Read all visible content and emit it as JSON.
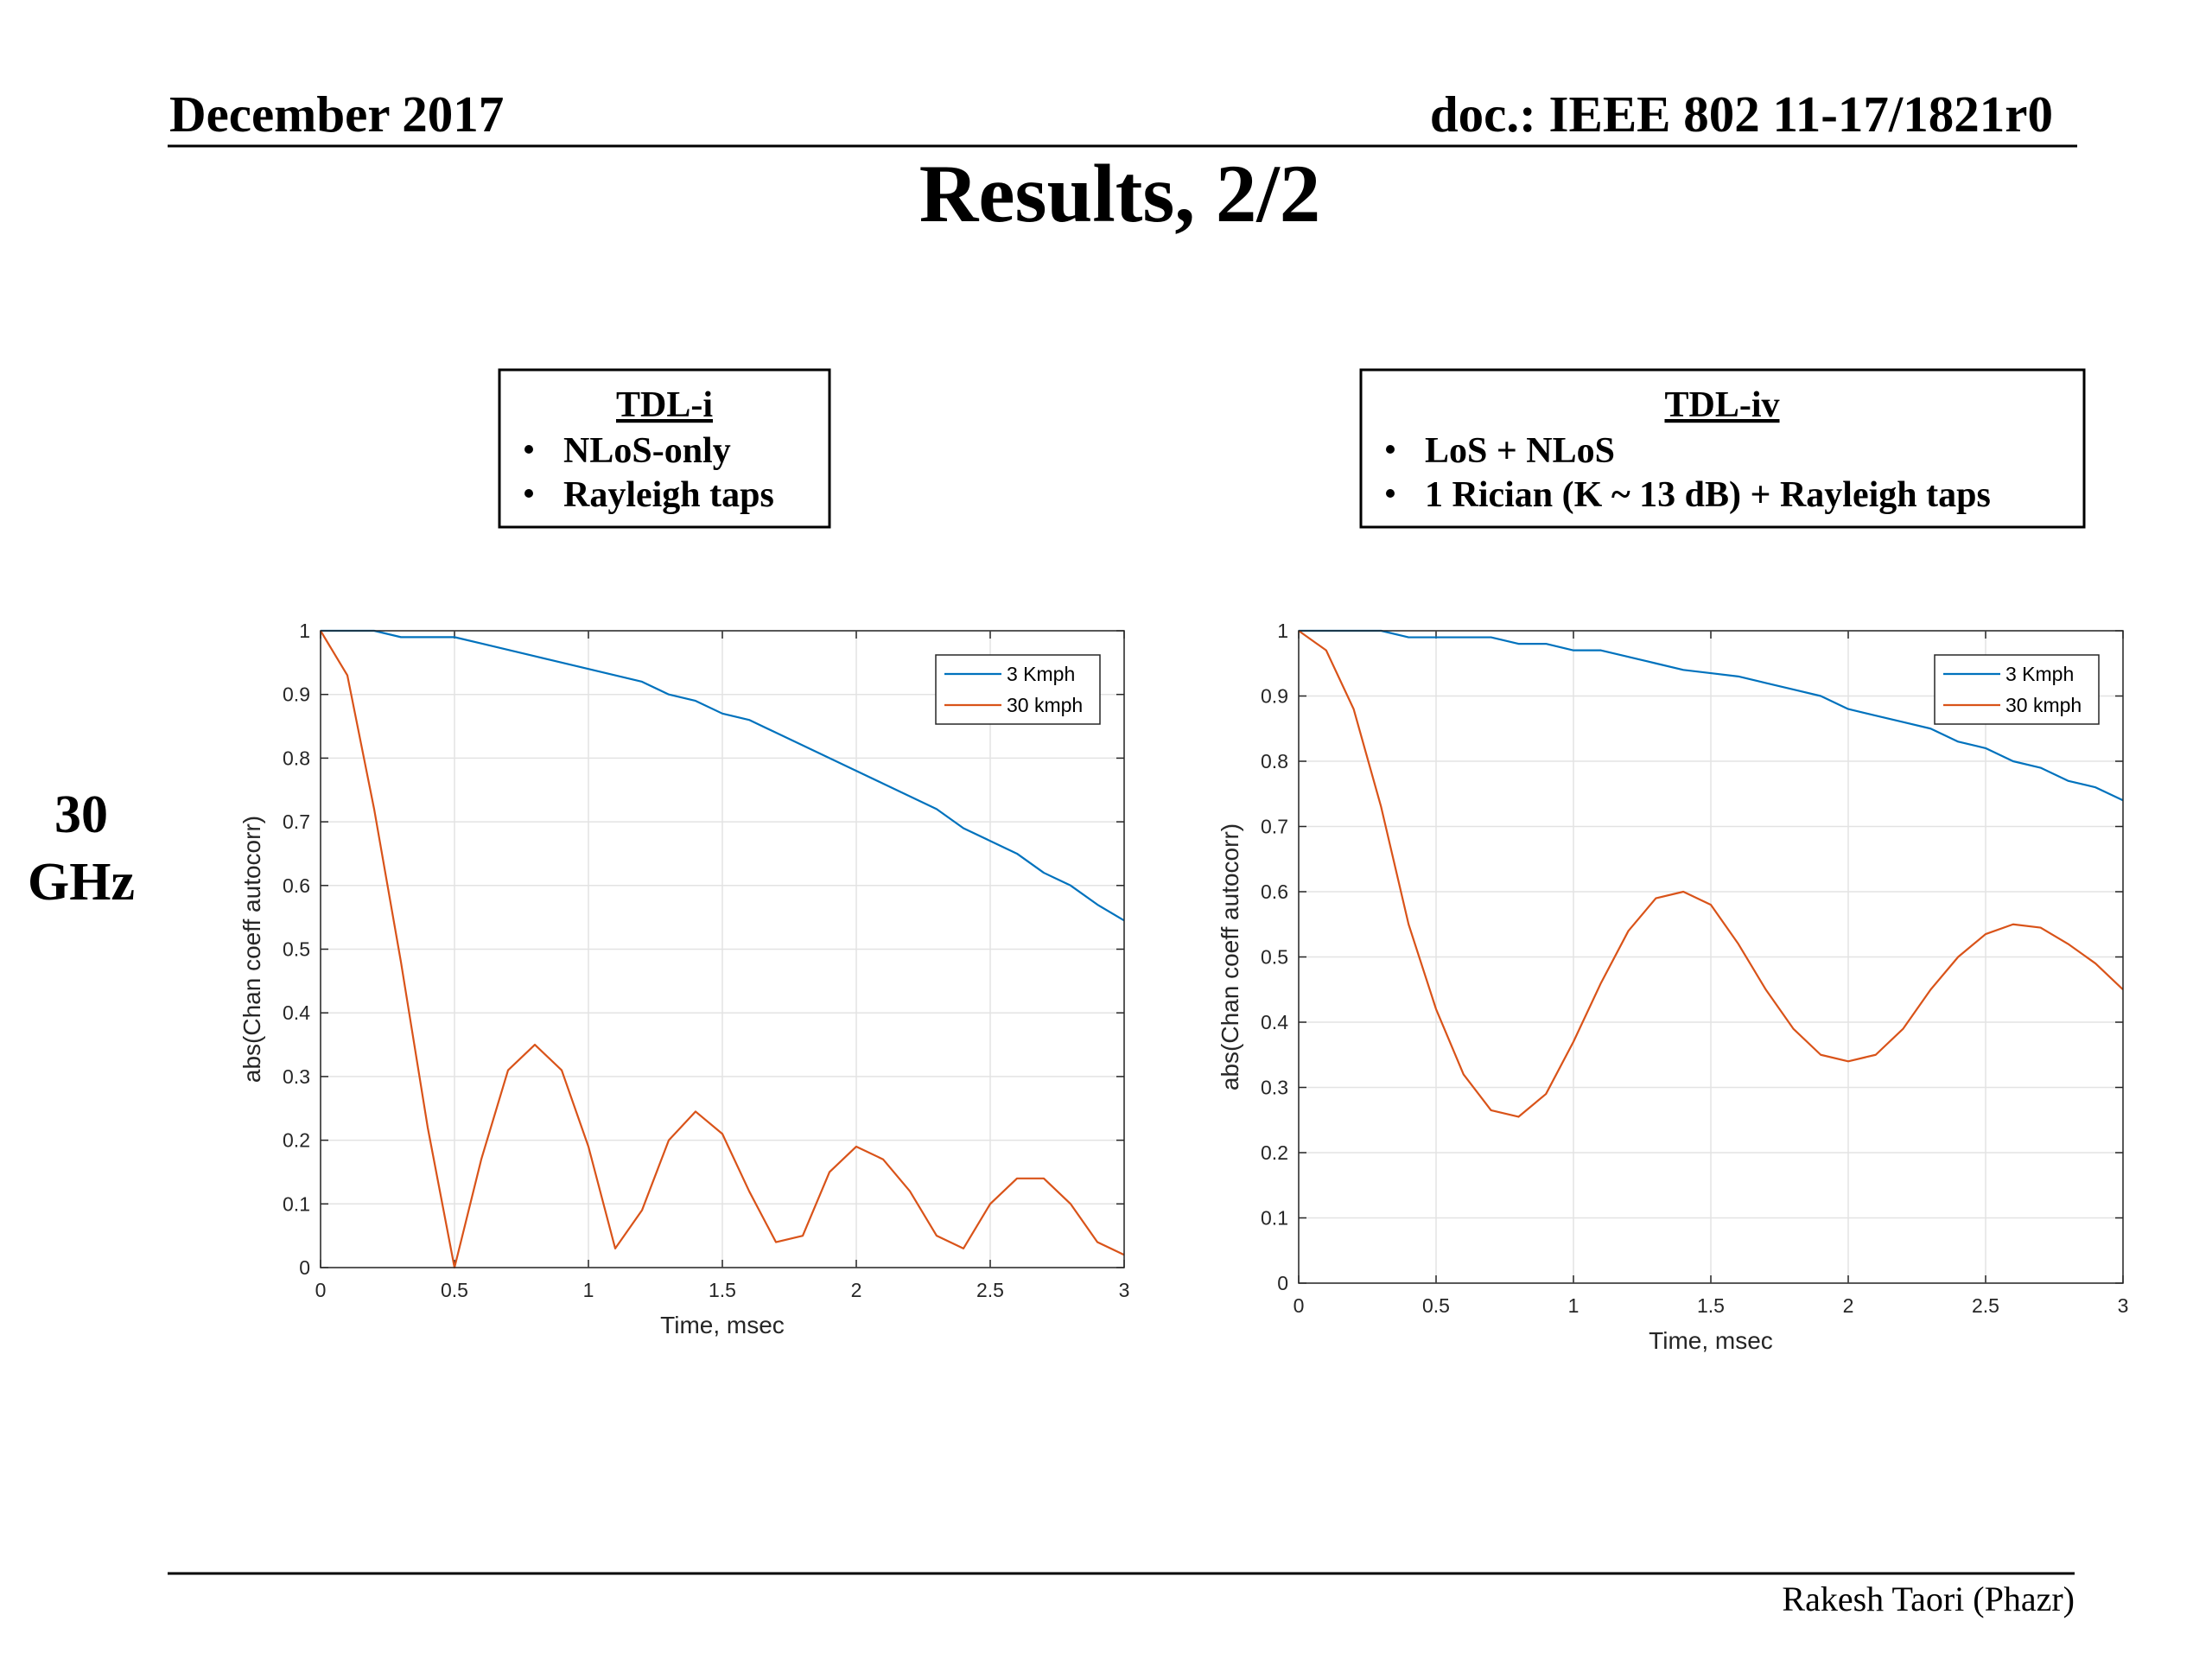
{
  "header": {
    "date": "December 2017",
    "doc": "doc.: IEEE 802 11-17/1821r0"
  },
  "title": "Results, 2/2",
  "boxes": [
    {
      "title": "TDL-i",
      "bullets": [
        "NLoS-only",
        "Rayleigh taps"
      ]
    },
    {
      "title": "TDL-iv",
      "bullets": [
        "LoS + NLoS",
        "1 Rician (K ~ 13 dB) + Rayleigh taps"
      ]
    }
  ],
  "side_label": [
    "30",
    "GHz"
  ],
  "footer": "Rakesh Taori (Phazr)",
  "chart_data": [
    {
      "type": "line",
      "x_label": "Time, msec",
      "y_label": "abs(Chan coeff autocorr)",
      "x": [
        0,
        0.1,
        0.2,
        0.3,
        0.4,
        0.5,
        0.6,
        0.7,
        0.8,
        0.9,
        1.0,
        1.1,
        1.2,
        1.3,
        1.4,
        1.5,
        1.6,
        1.7,
        1.8,
        1.9,
        2.0,
        2.1,
        2.2,
        2.3,
        2.4,
        2.5,
        2.6,
        2.7,
        2.8,
        2.9,
        3.0
      ],
      "series": [
        {
          "name": "3 Kmph",
          "color": "#0072bd",
          "values": [
            1,
            1.0,
            1.0,
            0.99,
            0.99,
            0.99,
            0.98,
            0.97,
            0.96,
            0.95,
            0.94,
            0.93,
            0.92,
            0.9,
            0.89,
            0.87,
            0.86,
            0.84,
            0.82,
            0.8,
            0.78,
            0.76,
            0.74,
            0.72,
            0.69,
            0.67,
            0.65,
            0.62,
            0.6,
            0.57,
            0.545
          ]
        },
        {
          "name": "30 kmph",
          "color": "#d95319",
          "values": [
            1,
            0.93,
            0.72,
            0.48,
            0.22,
            0.0,
            0.17,
            0.31,
            0.35,
            0.31,
            0.19,
            0.03,
            0.09,
            0.2,
            0.245,
            0.21,
            0.12,
            0.04,
            0.05,
            0.15,
            0.19,
            0.17,
            0.12,
            0.05,
            0.03,
            0.1,
            0.14,
            0.14,
            0.1,
            0.04,
            0.02
          ]
        }
      ],
      "xlim": [
        0,
        3
      ],
      "ylim": [
        0,
        1
      ],
      "xticks": [
        0,
        0.5,
        1,
        1.5,
        2,
        2.5,
        3
      ],
      "yticks": [
        0,
        0.1,
        0.2,
        0.3,
        0.4,
        0.5,
        0.6,
        0.7,
        0.8,
        0.9,
        1
      ],
      "grid": true,
      "legend": "northeast"
    },
    {
      "type": "line",
      "x_label": "Time, msec",
      "y_label": "abs(Chan coeff autocorr)",
      "x": [
        0,
        0.1,
        0.2,
        0.3,
        0.4,
        0.5,
        0.6,
        0.7,
        0.8,
        0.9,
        1.0,
        1.1,
        1.2,
        1.3,
        1.4,
        1.5,
        1.6,
        1.7,
        1.8,
        1.9,
        2.0,
        2.1,
        2.2,
        2.3,
        2.4,
        2.5,
        2.6,
        2.7,
        2.8,
        2.9,
        3.0
      ],
      "series": [
        {
          "name": "3 Kmph",
          "color": "#0072bd",
          "values": [
            1,
            1.0,
            1.0,
            1.0,
            0.99,
            0.99,
            0.99,
            0.99,
            0.98,
            0.98,
            0.97,
            0.97,
            0.96,
            0.95,
            0.94,
            0.935,
            0.93,
            0.92,
            0.91,
            0.9,
            0.88,
            0.87,
            0.86,
            0.85,
            0.83,
            0.82,
            0.8,
            0.79,
            0.77,
            0.76,
            0.74
          ]
        },
        {
          "name": "30 kmph",
          "color": "#d95319",
          "values": [
            1,
            0.97,
            0.88,
            0.73,
            0.55,
            0.42,
            0.32,
            0.265,
            0.255,
            0.29,
            0.37,
            0.46,
            0.54,
            0.59,
            0.6,
            0.58,
            0.52,
            0.45,
            0.39,
            0.35,
            0.34,
            0.35,
            0.39,
            0.45,
            0.5,
            0.535,
            0.55,
            0.545,
            0.52,
            0.49,
            0.45
          ]
        }
      ],
      "xlim": [
        0,
        3
      ],
      "ylim": [
        0,
        1
      ],
      "xticks": [
        0,
        0.5,
        1,
        1.5,
        2,
        2.5,
        3
      ],
      "yticks": [
        0,
        0.1,
        0.2,
        0.3,
        0.4,
        0.5,
        0.6,
        0.7,
        0.8,
        0.9,
        1
      ],
      "grid": true,
      "legend": "northeast"
    }
  ]
}
